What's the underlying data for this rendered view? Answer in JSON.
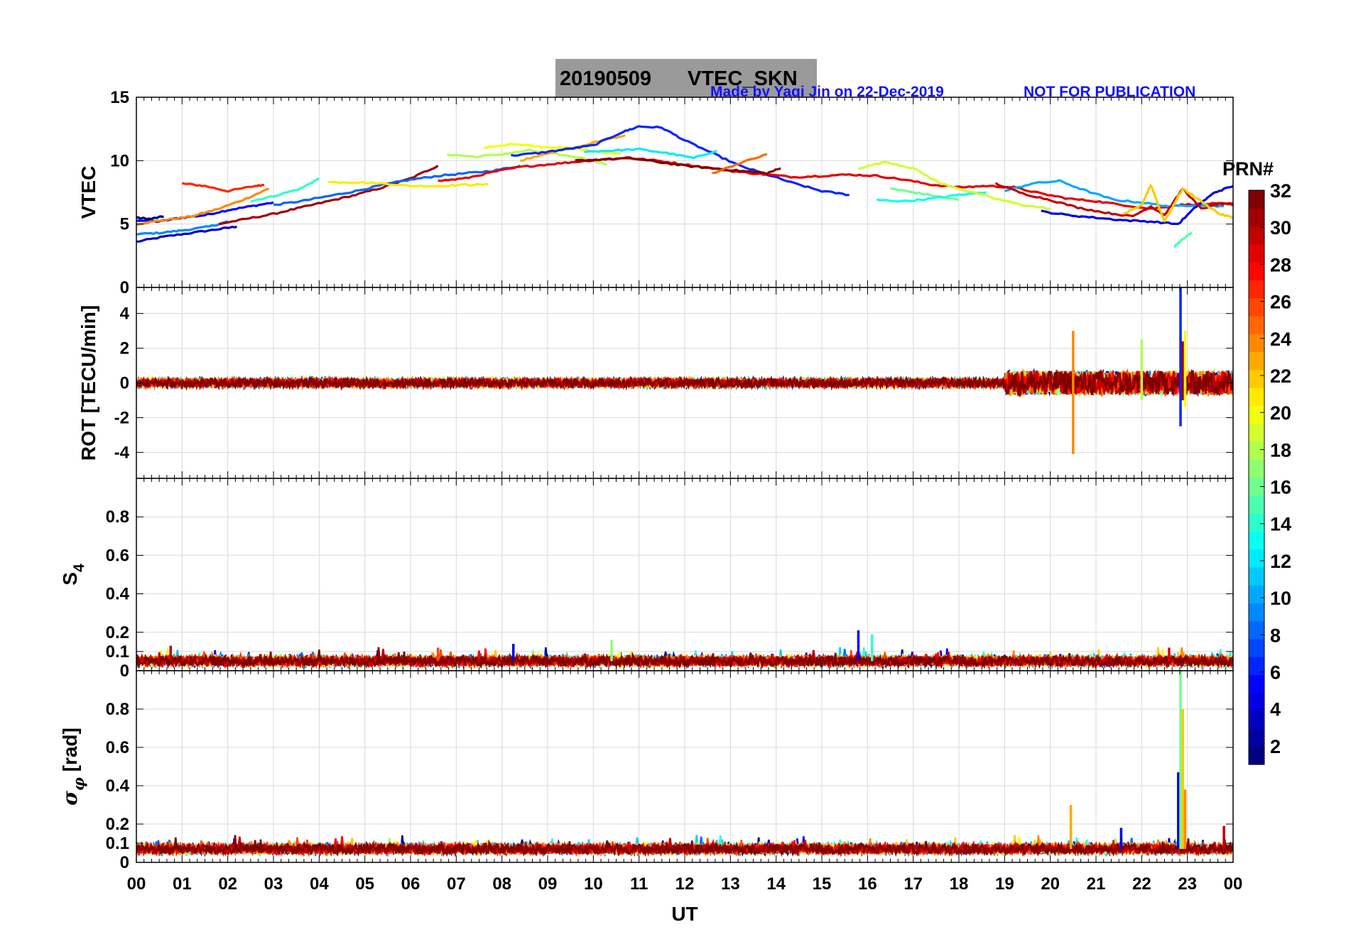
{
  "title": {
    "date": "20190509",
    "label": "VTEC_SKN"
  },
  "credit": {
    "made_by": "Made by Yaqi Jin on 22-Dec-2019",
    "notice": "NOT FOR PUBLICATION"
  },
  "colorbar": {
    "label": "PRN#",
    "ticks": [
      "2",
      "4",
      "6",
      "8",
      "10",
      "12",
      "14",
      "16",
      "18",
      "20",
      "22",
      "24",
      "26",
      "28",
      "30",
      "32"
    ],
    "range": [
      1,
      32
    ],
    "colormap": "jet"
  },
  "chart_data": [
    {
      "type": "line",
      "panel": "vtec",
      "ylabel": "VTEC",
      "ylim": [
        0,
        15
      ],
      "yticks": [
        "0",
        "5",
        "10",
        "15"
      ],
      "xlim": [
        0,
        24
      ],
      "grid": true,
      "series_description": "one trace per satellite PRN colored by PRN",
      "series": [
        {
          "prn": 3,
          "x": [
            0.0,
            0.6,
            1.2,
            1.8,
            2.2
          ],
          "values": [
            3.6,
            4.0,
            4.3,
            4.6,
            4.8
          ]
        },
        {
          "prn": 5,
          "x": [
            0.0,
            0.5,
            1.0,
            1.5,
            2.0,
            2.5,
            3.0
          ],
          "values": [
            5.3,
            5.2,
            5.5,
            5.7,
            6.1,
            6.4,
            6.7
          ]
        },
        {
          "prn": 1,
          "x": [
            0.0,
            0.3,
            0.6
          ],
          "values": [
            5.5,
            5.4,
            5.6
          ]
        },
        {
          "prn": 9,
          "x": [
            0.0,
            0.5,
            1.0,
            1.6,
            2.0
          ],
          "values": [
            4.2,
            4.3,
            4.5,
            4.8,
            5.2
          ]
        },
        {
          "prn": 27,
          "x": [
            1.0,
            1.5,
            2.0,
            2.6,
            2.8
          ],
          "values": [
            8.2,
            8.0,
            7.6,
            8.0,
            8.1
          ]
        },
        {
          "prn": 24,
          "x": [
            0.0,
            0.6,
            1.2,
            1.8,
            2.4,
            2.9
          ],
          "values": [
            5.0,
            5.3,
            5.6,
            6.2,
            7.0,
            7.8
          ]
        },
        {
          "prn": 31,
          "x": [
            1.8,
            2.4,
            3.0,
            3.6,
            4.2,
            4.8,
            5.4,
            6.0,
            6.6
          ],
          "values": [
            5.0,
            5.4,
            5.8,
            6.3,
            6.8,
            7.3,
            7.9,
            8.6,
            9.6
          ]
        },
        {
          "prn": 14,
          "x": [
            2.5,
            3.0,
            3.6,
            4.0
          ],
          "values": [
            6.8,
            7.2,
            7.8,
            8.6
          ]
        },
        {
          "prn": 8,
          "x": [
            3.0,
            3.6,
            4.2,
            4.8,
            5.4,
            6.0,
            6.6,
            7.2,
            7.8,
            8.4
          ],
          "values": [
            6.5,
            6.8,
            7.2,
            7.6,
            8.1,
            8.5,
            8.8,
            9.0,
            9.2,
            9.6
          ]
        },
        {
          "prn": 21,
          "x": [
            4.2,
            4.8,
            5.4,
            6.0,
            6.6,
            7.2,
            7.7
          ],
          "values": [
            8.3,
            8.3,
            8.2,
            8.0,
            8.0,
            8.1,
            8.1
          ]
        },
        {
          "prn": 18,
          "x": [
            6.8,
            7.4,
            8.0,
            8.6,
            9.2,
            9.8,
            10.3
          ],
          "values": [
            10.5,
            10.3,
            10.5,
            10.8,
            10.5,
            10.2,
            9.7
          ]
        },
        {
          "prn": 20,
          "x": [
            7.6,
            8.2,
            8.8,
            9.4,
            10.0,
            10.6
          ],
          "values": [
            11.0,
            11.3,
            11.1,
            11.0,
            10.8,
            10.5
          ]
        },
        {
          "prn": 23,
          "x": [
            8.4,
            9.0,
            9.6,
            10.2,
            10.7
          ],
          "values": [
            10.0,
            10.6,
            11.0,
            11.6,
            12.0
          ]
        },
        {
          "prn": 6,
          "x": [
            8.2,
            8.8,
            9.4,
            10.0,
            10.6,
            11.0,
            11.5,
            12.0,
            12.6,
            13.2,
            13.8,
            14.4,
            15.0,
            15.6
          ],
          "values": [
            10.4,
            10.6,
            10.9,
            11.2,
            12.2,
            12.7,
            12.6,
            11.6,
            10.6,
            9.6,
            8.9,
            8.2,
            7.6,
            7.3
          ]
        },
        {
          "prn": 12,
          "x": [
            9.8,
            10.4,
            11.0,
            11.6,
            12.2,
            12.7
          ],
          "values": [
            10.7,
            10.8,
            10.9,
            10.6,
            10.2,
            10.8
          ]
        },
        {
          "prn": 29,
          "x": [
            6.6,
            7.2,
            7.8,
            8.4,
            9.0,
            9.6,
            10.2,
            10.8,
            11.4,
            12.0,
            12.6,
            13.2,
            13.8,
            14.4,
            15.0,
            15.6,
            16.2,
            16.8,
            17.4,
            18.0,
            18.6,
            19.2,
            19.8,
            20.4,
            21.0,
            21.6,
            22.2,
            22.8,
            23.4,
            24.0
          ],
          "values": [
            8.4,
            8.6,
            9.1,
            9.5,
            9.7,
            9.9,
            10.1,
            10.2,
            10.0,
            9.7,
            9.4,
            9.1,
            8.9,
            8.7,
            8.8,
            8.9,
            8.8,
            8.5,
            8.1,
            7.9,
            8.0,
            7.9,
            7.4,
            7.0,
            6.8,
            6.5,
            6.2,
            6.5,
            6.6,
            6.6
          ]
        },
        {
          "prn": 32,
          "x": [
            9.6,
            10.2,
            10.8,
            11.4,
            12.0,
            12.6,
            13.2,
            13.8,
            14.1
          ],
          "values": [
            10.0,
            10.1,
            10.2,
            9.9,
            9.6,
            9.4,
            9.2,
            9.0,
            9.4
          ]
        },
        {
          "prn": 25,
          "x": [
            12.6,
            13.2,
            13.8
          ],
          "values": [
            9.0,
            9.8,
            10.5
          ]
        },
        {
          "prn": 16,
          "x": [
            16.5,
            17.0,
            17.5,
            18.0
          ],
          "values": [
            7.8,
            7.5,
            7.2,
            6.9
          ]
        },
        {
          "prn": 13,
          "x": [
            16.2,
            16.8,
            17.4,
            18.0,
            18.6
          ],
          "values": [
            6.9,
            6.8,
            7.0,
            7.3,
            7.5
          ]
        },
        {
          "prn": 19,
          "x": [
            15.8,
            16.4,
            17.0,
            17.6,
            18.2,
            18.8,
            19.4,
            20.0
          ],
          "values": [
            9.4,
            9.9,
            9.4,
            8.2,
            7.6,
            7.0,
            6.5,
            6.2
          ]
        },
        {
          "prn": 10,
          "x": [
            19.0,
            19.6,
            20.2,
            20.8,
            21.4,
            22.0,
            22.6,
            23.2,
            23.8
          ],
          "values": [
            7.6,
            8.2,
            8.4,
            7.6,
            6.9,
            6.7,
            6.4,
            6.5,
            6.4
          ]
        },
        {
          "prn": 4,
          "x": [
            19.8,
            20.4,
            21.0,
            21.6,
            22.2,
            22.8,
            23.2,
            23.6,
            24.0
          ],
          "values": [
            6.0,
            5.7,
            5.5,
            5.3,
            5.2,
            5.0,
            6.4,
            7.5,
            8.0
          ]
        },
        {
          "prn": 30,
          "x": [
            18.8,
            19.4,
            20.0,
            20.6,
            21.2,
            21.8,
            22.2,
            22.5,
            22.9,
            23.3,
            23.7,
            24.0
          ],
          "values": [
            8.2,
            7.4,
            6.9,
            6.3,
            5.9,
            5.6,
            6.4,
            5.7,
            7.8,
            6.2,
            6.6,
            6.5
          ]
        },
        {
          "prn": 22,
          "x": [
            21.6,
            22.0,
            22.2,
            22.5,
            22.9,
            23.3,
            23.7,
            24.0
          ],
          "values": [
            5.8,
            6.5,
            8.1,
            5.2,
            7.8,
            6.8,
            5.8,
            5.5
          ]
        },
        {
          "prn": 15,
          "x": [
            22.7,
            22.9,
            23.1
          ],
          "values": [
            3.2,
            3.8,
            4.3
          ]
        }
      ]
    },
    {
      "type": "line",
      "panel": "rot",
      "ylabel": "ROT [TECU/min]",
      "ylim": [
        -5.5,
        5.5
      ],
      "yticks": [
        "-4",
        "-2",
        "0",
        "2",
        "4"
      ],
      "xlim": [
        0,
        24
      ],
      "grid": true,
      "baseline": 0,
      "typical_amplitude": 0.25,
      "spikes": [
        {
          "x": 20.5,
          "values": [
            3.0,
            -4.1
          ],
          "prn": 24
        },
        {
          "x": 22.0,
          "values": [
            2.5,
            -1.0
          ],
          "prn": 18
        },
        {
          "x": 22.85,
          "values": [
            5.5,
            -2.5
          ],
          "prn": 6
        },
        {
          "x": 22.9,
          "values": [
            2.4,
            -1.0
          ],
          "prn": 31
        },
        {
          "x": 22.95,
          "values": [
            3.0,
            -1.4
          ],
          "prn": 20
        }
      ]
    },
    {
      "type": "line",
      "panel": "s4",
      "ylabel": "S4",
      "ylim": [
        0,
        1
      ],
      "yticks": [
        "0",
        "0.1",
        "0.2",
        "0.4",
        "0.6",
        "0.8"
      ],
      "xlim": [
        0,
        24
      ],
      "grid": true,
      "baseline": 0.05,
      "spikes": [
        {
          "x": 0.75,
          "value": 0.13,
          "prn": 30
        },
        {
          "x": 8.25,
          "value": 0.14,
          "prn": 4
        },
        {
          "x": 15.8,
          "value": 0.21,
          "prn": 5
        },
        {
          "x": 16.1,
          "value": 0.19,
          "prn": 14
        },
        {
          "x": 6.6,
          "value": 0.12,
          "prn": 26
        },
        {
          "x": 10.4,
          "value": 0.16,
          "prn": 17
        },
        {
          "x": 22.6,
          "value": 0.12,
          "prn": 29
        }
      ]
    },
    {
      "type": "line",
      "panel": "sigma_phi",
      "ylabel": "σ_φ [rad]",
      "ylim": [
        0,
        1
      ],
      "yticks": [
        "0",
        "0.1",
        "0.2",
        "0.4",
        "0.6",
        "0.8"
      ],
      "xlim": [
        0,
        24
      ],
      "grid": true,
      "baseline": 0.07,
      "spikes": [
        {
          "x": 20.45,
          "value": 0.3,
          "prn": 23
        },
        {
          "x": 21.55,
          "value": 0.18,
          "prn": 4
        },
        {
          "x": 22.8,
          "value": 0.47,
          "prn": 4
        },
        {
          "x": 22.85,
          "value": 1.0,
          "prn": 16
        },
        {
          "x": 22.9,
          "value": 0.8,
          "prn": 22
        },
        {
          "x": 22.95,
          "value": 0.38,
          "prn": 24
        },
        {
          "x": 23.8,
          "value": 0.19,
          "prn": 30
        }
      ]
    }
  ],
  "xaxis": {
    "label": "UT",
    "ticks": [
      "00",
      "01",
      "02",
      "03",
      "04",
      "05",
      "06",
      "07",
      "08",
      "09",
      "10",
      "11",
      "12",
      "13",
      "14",
      "15",
      "16",
      "17",
      "18",
      "19",
      "20",
      "21",
      "22",
      "23",
      "00"
    ]
  }
}
